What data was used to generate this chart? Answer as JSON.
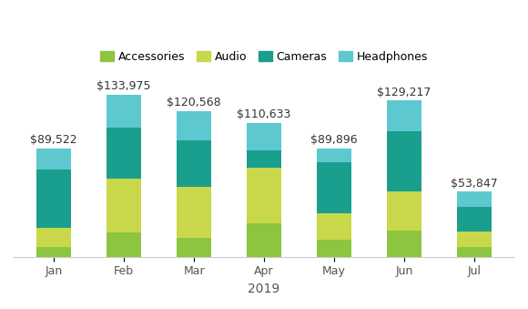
{
  "months": [
    "Jan",
    "Feb",
    "Mar",
    "Apr",
    "May",
    "Jun",
    "Jul"
  ],
  "totals": [
    89522,
    133975,
    120568,
    110633,
    89896,
    129217,
    53847
  ],
  "total_labels": [
    "$89,522",
    "$133,975",
    "$120,568",
    "$110,633",
    "$89,896",
    "$129,217",
    "$53,847"
  ],
  "series": {
    "Accessories": [
      8000,
      20000,
      16000,
      28000,
      14000,
      22000,
      8000
    ],
    "Audio": [
      16000,
      45000,
      42000,
      46000,
      22000,
      32000,
      13000
    ],
    "Cameras": [
      48000,
      42000,
      38000,
      14000,
      42000,
      50000,
      20000
    ],
    "Headphones": [
      17522,
      26975,
      24568,
      22633,
      11896,
      25217,
      12847
    ]
  },
  "colors": {
    "Accessories": "#8DC540",
    "Audio": "#C8D84A",
    "Cameras": "#1A9E8E",
    "Headphones": "#5DC8D0"
  },
  "xlabel": "2019",
  "ylim": [
    0,
    150000
  ],
  "legend_order": [
    "Accessories",
    "Audio",
    "Cameras",
    "Headphones"
  ],
  "bar_width": 0.5,
  "background_color": "#ffffff",
  "label_fontsize": 9,
  "legend_fontsize": 9,
  "xlabel_fontsize": 10,
  "tick_fontsize": 9
}
